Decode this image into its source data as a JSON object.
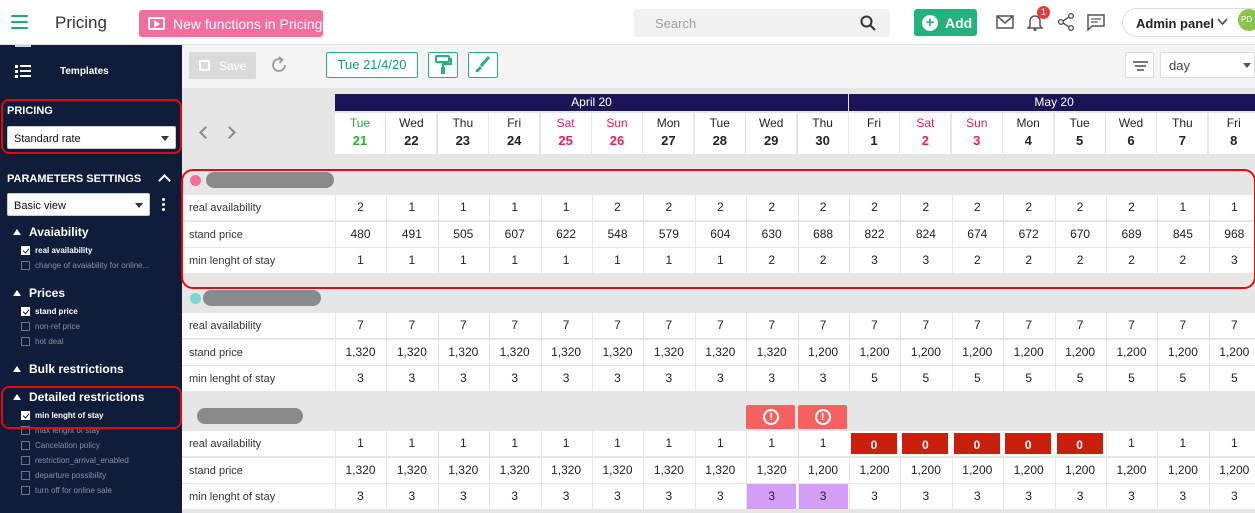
{
  "header": {
    "app_title": "Pricing",
    "promo_label": "New functions in Pricing",
    "search_placeholder": "Search",
    "add_label": "Add",
    "notification_count": "1",
    "admin_label": "Admin panel",
    "avatar_initials": "PD"
  },
  "sidebar": {
    "templates_label": "Templates",
    "pricing_heading": "PRICING",
    "pricing_select": "Standard rate",
    "params_heading": "PARAMETERS SETTINGS",
    "view_select": "Basic view",
    "groups": [
      {
        "label": "Avaiability",
        "options": [
          {
            "label": "real availability",
            "checked": true
          },
          {
            "label": "change of avaiability for online...",
            "checked": false
          }
        ]
      },
      {
        "label": "Prices",
        "options": [
          {
            "label": "stand price",
            "checked": true
          },
          {
            "label": "non-ref price",
            "checked": false
          },
          {
            "label": "hot deal",
            "checked": false
          }
        ]
      },
      {
        "label": "Bulk restrictions",
        "options": []
      },
      {
        "label": "Detailed restrictions",
        "options": [
          {
            "label": "min lenght of stay",
            "checked": true
          },
          {
            "label": "max lenght of stay",
            "checked": false
          },
          {
            "label": "Cancelation policy",
            "checked": false
          },
          {
            "label": "restriction_arrival_enabled",
            "checked": false
          },
          {
            "label": "departure possibility",
            "checked": false
          },
          {
            "label": "turn off for online sale",
            "checked": false
          }
        ]
      }
    ]
  },
  "toolbar": {
    "save_label": "Save",
    "date_label": "Tue 21/4/20",
    "period_select": "day"
  },
  "calendar": {
    "months": [
      {
        "label": "April 20",
        "span": 10
      },
      {
        "label": "May 20",
        "span": 8
      }
    ],
    "days": [
      {
        "dow": "Tue",
        "num": "21",
        "style": "today"
      },
      {
        "dow": "Wed",
        "num": "22",
        "style": "normal"
      },
      {
        "dow": "Thu",
        "num": "23",
        "style": "normal"
      },
      {
        "dow": "Fri",
        "num": "24",
        "style": "normal"
      },
      {
        "dow": "Sat",
        "num": "25",
        "style": "weekend"
      },
      {
        "dow": "Sun",
        "num": "26",
        "style": "weekend"
      },
      {
        "dow": "Mon",
        "num": "27",
        "style": "normal"
      },
      {
        "dow": "Tue",
        "num": "28",
        "style": "normal"
      },
      {
        "dow": "Wed",
        "num": "29",
        "style": "normal"
      },
      {
        "dow": "Thu",
        "num": "30",
        "style": "normal"
      },
      {
        "dow": "Fri",
        "num": "1",
        "style": "normal"
      },
      {
        "dow": "Sat",
        "num": "2",
        "style": "weekend"
      },
      {
        "dow": "Sun",
        "num": "3",
        "style": "weekend"
      },
      {
        "dow": "Mon",
        "num": "4",
        "style": "normal"
      },
      {
        "dow": "Tue",
        "num": "5",
        "style": "normal"
      },
      {
        "dow": "Wed",
        "num": "6",
        "style": "normal"
      },
      {
        "dow": "Thu",
        "num": "7",
        "style": "normal"
      },
      {
        "dow": "Fri",
        "num": "8",
        "style": "normal"
      }
    ],
    "rooms": [
      {
        "dot_color": "#f36e9d",
        "warnings": [],
        "rows": [
          {
            "label": "real availability",
            "values": [
              "2",
              "1",
              "1",
              "1",
              "1",
              "2",
              "2",
              "2",
              "2",
              "2",
              "2",
              "2",
              "2",
              "2",
              "2",
              "2",
              "1",
              "1"
            ],
            "highlight": []
          },
          {
            "label": "stand price",
            "values": [
              "480",
              "491",
              "505",
              "607",
              "622",
              "548",
              "579",
              "604",
              "630",
              "688",
              "822",
              "824",
              "674",
              "672",
              "670",
              "689",
              "845",
              "968"
            ],
            "highlight": []
          },
          {
            "label": "min lenght of stay",
            "values": [
              "1",
              "1",
              "1",
              "1",
              "1",
              "1",
              "1",
              "1",
              "2",
              "2",
              "3",
              "3",
              "2",
              "2",
              "2",
              "2",
              "2",
              "3"
            ],
            "highlight": []
          }
        ]
      },
      {
        "dot_color": "#7fd3d0",
        "warnings": [],
        "rows": [
          {
            "label": "real availability",
            "values": [
              "7",
              "7",
              "7",
              "7",
              "7",
              "7",
              "7",
              "7",
              "7",
              "7",
              "7",
              "7",
              "7",
              "7",
              "7",
              "7",
              "7",
              "7"
            ],
            "highlight": []
          },
          {
            "label": "stand price",
            "values": [
              "1,320",
              "1,320",
              "1,320",
              "1,320",
              "1,320",
              "1,320",
              "1,320",
              "1,320",
              "1,320",
              "1,200",
              "1,200",
              "1,200",
              "1,200",
              "1,200",
              "1,200",
              "1,200",
              "1,200",
              "1,200"
            ],
            "highlight": []
          },
          {
            "label": "min lenght of stay",
            "values": [
              "3",
              "3",
              "3",
              "3",
              "3",
              "3",
              "3",
              "3",
              "3",
              "3",
              "5",
              "5",
              "5",
              "5",
              "5",
              "5",
              "5",
              "5"
            ],
            "highlight": []
          }
        ]
      },
      {
        "dot_color": "",
        "warnings": [
          8,
          9
        ],
        "rows": [
          {
            "label": "real availability",
            "values": [
              "1",
              "1",
              "1",
              "1",
              "1",
              "1",
              "1",
              "1",
              "1",
              "1",
              "0",
              "0",
              "0",
              "0",
              "0",
              "1",
              "1",
              "1"
            ],
            "highlight": [
              {
                "idx": 10,
                "kind": "red"
              },
              {
                "idx": 11,
                "kind": "red"
              },
              {
                "idx": 12,
                "kind": "red"
              },
              {
                "idx": 13,
                "kind": "red"
              },
              {
                "idx": 14,
                "kind": "red"
              }
            ]
          },
          {
            "label": "stand price",
            "values": [
              "1,320",
              "1,320",
              "1,320",
              "1,320",
              "1,320",
              "1,320",
              "1,320",
              "1,320",
              "1,320",
              "1,200",
              "1,200",
              "1,200",
              "1,200",
              "1,200",
              "1,200",
              "1,200",
              "1,200",
              "1,200"
            ],
            "highlight": []
          },
          {
            "label": "min lenght of stay",
            "values": [
              "3",
              "3",
              "3",
              "3",
              "3",
              "3",
              "3",
              "3",
              "3",
              "3",
              "3",
              "3",
              "3",
              "3",
              "3",
              "3",
              "3",
              "3"
            ],
            "highlight": [
              {
                "idx": 8,
                "kind": "purple"
              },
              {
                "idx": 9,
                "kind": "purple"
              }
            ]
          }
        ]
      }
    ]
  },
  "colors": {
    "accent": "#23b27c",
    "weekend": "#e91e63",
    "today": "#2fae3a",
    "month_bar": "#1c1456",
    "alert": "#c8200c"
  }
}
